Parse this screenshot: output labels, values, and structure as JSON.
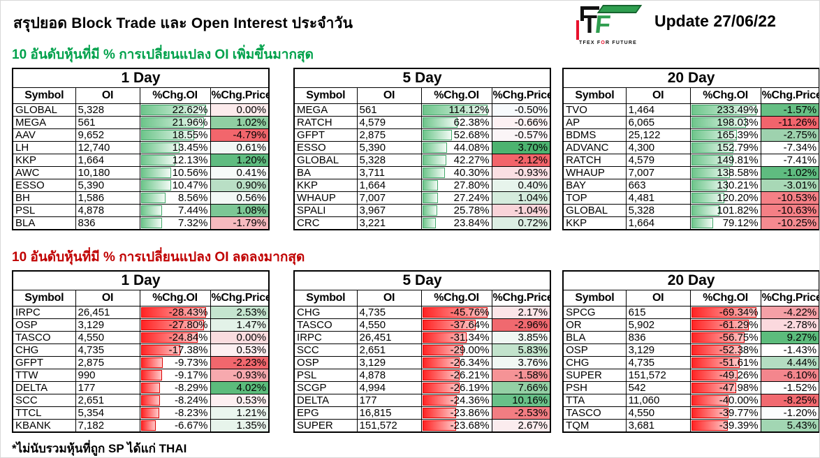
{
  "header": {
    "title": "สรุปยอด Block Trade และ Open Interest ประจำวัน",
    "update_label": "Update 27/06/22",
    "logo": {
      "t": "T",
      "f": "F",
      "caption_left": "TFEX F",
      "caption_o": "O",
      "caption_right": "R FUTURE"
    }
  },
  "colors": {
    "heading_up": "#00a14b",
    "heading_down": "#c00000",
    "bar_up_start": "#6ec58b",
    "bar_up_end": "#f2fbf5",
    "bar_up_border": "#43a96b",
    "bar_down_start": "#ff2424",
    "bar_down_end": "#ffc9c9",
    "bar_down_border": "#dd0000",
    "logo_green": "#2f9e4f",
    "logo_red": "#e8112d"
  },
  "footnote": "*ไม่นับรวมหุ้นที่ถูก SP ได้แก่ THAI",
  "sections": [
    {
      "heading": "10 อันดับหุ้นที่มี % การเปลี่ยนแปลง OI เพิ่มขึ้นมากสุด",
      "heading_color": "#00a14b",
      "direction": "up",
      "tables": [
        {
          "title": "1 Day",
          "headers": [
            "Symbol",
            "OI",
            "%Chg.OI",
            "%Chg.Price"
          ],
          "rows": [
            {
              "symbol": "GLOBAL",
              "oi": "5,328",
              "chg_oi": 22.62,
              "chg_price": 0.0,
              "price_bg": "#fcebec"
            },
            {
              "symbol": "MEGA",
              "oi": "561",
              "chg_oi": 21.96,
              "chg_price": 1.02,
              "price_bg": "#90cfa2"
            },
            {
              "symbol": "AAV",
              "oi": "9,652",
              "chg_oi": 18.55,
              "chg_price": -4.79,
              "price_bg": "#f2666c"
            },
            {
              "symbol": "LH",
              "oi": "12,740",
              "chg_oi": 13.45,
              "chg_price": 0.61,
              "price_bg": "#f2f8f5"
            },
            {
              "symbol": "KKP",
              "oi": "1,664",
              "chg_oi": 12.13,
              "chg_price": 1.2,
              "price_bg": "#5fbc80"
            },
            {
              "symbol": "AWC",
              "oi": "10,180",
              "chg_oi": 10.56,
              "chg_price": 0.41,
              "price_bg": "#f7fbf9"
            },
            {
              "symbol": "ESSO",
              "oi": "5,390",
              "chg_oi": 10.47,
              "chg_price": 0.9,
              "price_bg": "#b9dfc5"
            },
            {
              "symbol": "BH",
              "oi": "1,586",
              "chg_oi": 8.56,
              "chg_price": 0.56,
              "price_bg": "#f3f9f6"
            },
            {
              "symbol": "PSL",
              "oi": "4,878",
              "chg_oi": 7.44,
              "chg_price": 1.08,
              "price_bg": "#7cc795"
            },
            {
              "symbol": "BLA",
              "oi": "836",
              "chg_oi": 7.32,
              "chg_price": -1.79,
              "price_bg": "#f7babf"
            }
          ]
        },
        {
          "title": "5 Day",
          "headers": [
            "Symbol",
            "OI",
            "%Chg.OI",
            "%Chg.Price"
          ],
          "rows": [
            {
              "symbol": "MEGA",
              "oi": "561",
              "chg_oi": 114.12,
              "chg_price": -0.5,
              "price_bg": "#f7fafc"
            },
            {
              "symbol": "RATCH",
              "oi": "4,579",
              "chg_oi": 62.38,
              "chg_price": -0.66,
              "price_bg": "#fdf1f3"
            },
            {
              "symbol": "GFPT",
              "oi": "2,875",
              "chg_oi": 52.68,
              "chg_price": -0.57,
              "price_bg": "#fbf5f7"
            },
            {
              "symbol": "ESSO",
              "oi": "5,390",
              "chg_oi": 44.08,
              "chg_price": 3.7,
              "price_bg": "#4db370"
            },
            {
              "symbol": "GLOBAL",
              "oi": "5,328",
              "chg_oi": 42.27,
              "chg_price": -2.12,
              "price_bg": "#f2646a"
            },
            {
              "symbol": "BA",
              "oi": "3,711",
              "chg_oi": 40.3,
              "chg_price": -0.93,
              "price_bg": "#fadfe3"
            },
            {
              "symbol": "KKP",
              "oi": "1,664",
              "chg_oi": 27.8,
              "chg_price": 0.4,
              "price_bg": "#e7f4ec"
            },
            {
              "symbol": "WHAUP",
              "oi": "7,007",
              "chg_oi": 27.24,
              "chg_price": 1.04,
              "price_bg": "#d5ecdd"
            },
            {
              "symbol": "SPALI",
              "oi": "3,967",
              "chg_oi": 25.78,
              "chg_price": -1.04,
              "price_bg": "#f9d4d9"
            },
            {
              "symbol": "CRC",
              "oi": "3,221",
              "chg_oi": 23.84,
              "chg_price": 0.72,
              "price_bg": "#dceee3"
            }
          ]
        },
        {
          "title": "20 Day",
          "headers": [
            "Symbol",
            "OI",
            "%Chg.OI",
            "%Chg.Price"
          ],
          "rows": [
            {
              "symbol": "TVO",
              "oi": "1,464",
              "chg_oi": 233.49,
              "chg_price": -1.57,
              "price_bg": "#66bf84"
            },
            {
              "symbol": "AP",
              "oi": "6,065",
              "chg_oi": 198.03,
              "chg_price": -11.26,
              "price_bg": "#f2646c"
            },
            {
              "symbol": "BDMS",
              "oi": "25,122",
              "chg_oi": 165.39,
              "chg_price": -2.75,
              "price_bg": "#9ed2ae"
            },
            {
              "symbol": "ADVANC",
              "oi": "4,300",
              "chg_oi": 152.79,
              "chg_price": -7.34,
              "price_bg": "#ffffff"
            },
            {
              "symbol": "RATCH",
              "oi": "4,579",
              "chg_oi": 149.81,
              "chg_price": -7.41,
              "price_bg": "#ffffff"
            },
            {
              "symbol": "WHAUP",
              "oi": "7,007",
              "chg_oi": 138.58,
              "chg_price": -1.02,
              "price_bg": "#5fbc80"
            },
            {
              "symbol": "BAY",
              "oi": "663",
              "chg_oi": 130.21,
              "chg_price": -3.01,
              "price_bg": "#a8d8b6"
            },
            {
              "symbol": "TOP",
              "oi": "4,481",
              "chg_oi": 120.2,
              "chg_price": -10.53,
              "price_bg": "#f58086"
            },
            {
              "symbol": "GLOBAL",
              "oi": "5,328",
              "chg_oi": 101.82,
              "chg_price": -10.63,
              "price_bg": "#f57f85"
            },
            {
              "symbol": "KKP",
              "oi": "1,664",
              "chg_oi": 79.12,
              "chg_price": -10.25,
              "price_bg": "#f58a90"
            }
          ]
        }
      ]
    },
    {
      "heading": "10 อันดับหุ้นที่มี % การเปลี่ยนแปลง OI ลดลงมากสุด",
      "heading_color": "#c00000",
      "direction": "down",
      "tables": [
        {
          "title": "1 Day",
          "headers": [
            "Symbol",
            "OI",
            "%Chg.OI",
            "%Chg.Price"
          ],
          "rows": [
            {
              "symbol": "IRPC",
              "oi": "26,451",
              "chg_oi": -28.43,
              "chg_price": 2.53,
              "price_bg": "#c5e5cf"
            },
            {
              "symbol": "OSP",
              "oi": "3,129",
              "chg_oi": -27.8,
              "chg_price": 1.47,
              "price_bg": "#e3f2e8"
            },
            {
              "symbol": "TASCO",
              "oi": "4,550",
              "chg_oi": -24.84,
              "chg_price": 0.0,
              "price_bg": "#fadcdf"
            },
            {
              "symbol": "CHG",
              "oi": "4,735",
              "chg_oi": -17.38,
              "chg_price": 0.53,
              "price_bg": "#fdeff1"
            },
            {
              "symbol": "GFPT",
              "oi": "2,875",
              "chg_oi": -9.73,
              "chg_price": -2.23,
              "price_bg": "#f1676d"
            },
            {
              "symbol": "TTW",
              "oi": "990",
              "chg_oi": -9.17,
              "chg_price": -0.93,
              "price_bg": "#f7a9ae"
            },
            {
              "symbol": "DELTA",
              "oi": "177",
              "chg_oi": -8.29,
              "chg_price": 4.02,
              "price_bg": "#5cbc7c"
            },
            {
              "symbol": "SCC",
              "oi": "2,651",
              "chg_oi": -8.24,
              "chg_price": 0.53,
              "price_bg": "#fdeff1"
            },
            {
              "symbol": "TTCL",
              "oi": "5,354",
              "chg_oi": -8.23,
              "chg_price": 1.21,
              "price_bg": "#ebf6ef"
            },
            {
              "symbol": "KBANK",
              "oi": "7,182",
              "chg_oi": -6.67,
              "chg_price": 1.35,
              "price_bg": "#e7f4eb"
            }
          ]
        },
        {
          "title": "5 Day",
          "headers": [
            "Symbol",
            "OI",
            "%Chg.OI",
            "%Chg.Price"
          ],
          "rows": [
            {
              "symbol": "CHG",
              "oi": "4,735",
              "chg_oi": -45.76,
              "chg_price": 2.17,
              "price_bg": "#fbe5e8"
            },
            {
              "symbol": "TASCO",
              "oi": "4,550",
              "chg_oi": -37.64,
              "chg_price": -2.96,
              "price_bg": "#f0696f"
            },
            {
              "symbol": "IRPC",
              "oi": "26,451",
              "chg_oi": -31.34,
              "chg_price": 3.85,
              "price_bg": "#f0f7f3"
            },
            {
              "symbol": "SCC",
              "oi": "2,651",
              "chg_oi": -29.0,
              "chg_price": 5.83,
              "price_bg": "#c2e3cc"
            },
            {
              "symbol": "OSP",
              "oi": "3,129",
              "chg_oi": -26.34,
              "chg_price": 3.76,
              "price_bg": "#f1f8f4"
            },
            {
              "symbol": "PSL",
              "oi": "4,878",
              "chg_oi": -26.21,
              "chg_price": -1.58,
              "price_bg": "#f59396"
            },
            {
              "symbol": "SCGP",
              "oi": "4,994",
              "chg_oi": -26.19,
              "chg_price": 7.66,
              "price_bg": "#94d0a5"
            },
            {
              "symbol": "DELTA",
              "oi": "177",
              "chg_oi": -24.36,
              "chg_price": 10.16,
              "price_bg": "#68c088"
            },
            {
              "symbol": "EPG",
              "oi": "16,815",
              "chg_oi": -23.86,
              "chg_price": -2.53,
              "price_bg": "#f27d82"
            },
            {
              "symbol": "SUPER",
              "oi": "151,572",
              "chg_oi": -23.68,
              "chg_price": 2.67,
              "price_bg": "#fbecee"
            }
          ]
        },
        {
          "title": "20 Day",
          "headers": [
            "Symbol",
            "OI",
            "%Chg.OI",
            "%Chg.Price"
          ],
          "rows": [
            {
              "symbol": "SPCG",
              "oi": "615",
              "chg_oi": -69.34,
              "chg_price": -4.22,
              "price_bg": "#f5a0a6"
            },
            {
              "symbol": "OR",
              "oi": "5,902",
              "chg_oi": -61.29,
              "chg_price": -2.78,
              "price_bg": "#fbd9de"
            },
            {
              "symbol": "BLA",
              "oi": "836",
              "chg_oi": -56.75,
              "chg_price": 9.27,
              "price_bg": "#5cbc7c"
            },
            {
              "symbol": "OSP",
              "oi": "3,129",
              "chg_oi": -52.38,
              "chg_price": -1.43,
              "price_bg": "#ffffff"
            },
            {
              "symbol": "CHG",
              "oi": "4,735",
              "chg_oi": -51.61,
              "chg_price": 4.44,
              "price_bg": "#b4ddc2"
            },
            {
              "symbol": "SUPER",
              "oi": "151,572",
              "chg_oi": -49.26,
              "chg_price": -6.1,
              "price_bg": "#f4868d"
            },
            {
              "symbol": "PSH",
              "oi": "542",
              "chg_oi": -47.98,
              "chg_price": -1.52,
              "price_bg": "#fdfefe"
            },
            {
              "symbol": "TTA",
              "oi": "11,060",
              "chg_oi": -40.0,
              "chg_price": -8.25,
              "price_bg": "#f16a70"
            },
            {
              "symbol": "TASCO",
              "oi": "4,550",
              "chg_oi": -39.77,
              "chg_price": -1.2,
              "price_bg": "#fbfdfd"
            },
            {
              "symbol": "TQM",
              "oi": "3,681",
              "chg_oi": -39.39,
              "chg_price": 5.43,
              "price_bg": "#a2d6b3"
            }
          ]
        }
      ]
    }
  ]
}
